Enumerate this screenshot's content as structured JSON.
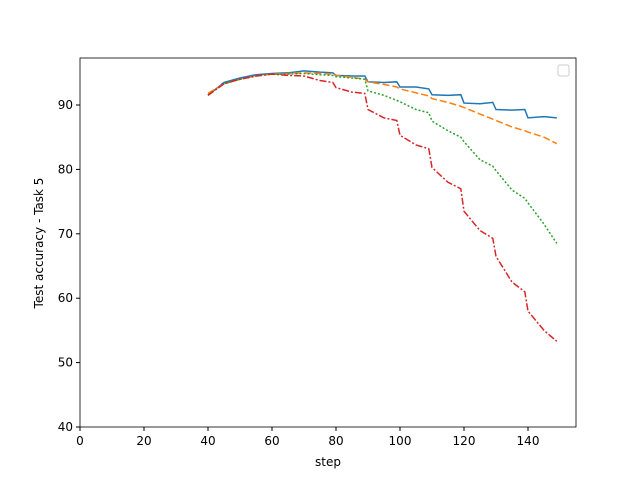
{
  "chart_data": {
    "type": "line",
    "xlabel": "step",
    "ylabel": "Test accuracy - Task 5",
    "x": [
      40,
      45,
      50,
      55,
      60,
      65,
      70,
      75,
      79,
      80,
      85,
      89,
      90,
      95,
      99,
      100,
      105,
      109,
      110,
      115,
      119,
      120,
      125,
      129,
      130,
      135,
      139,
      140,
      145,
      149
    ],
    "series": [
      {
        "color": "#1f77b4",
        "linestyle": "solid",
        "values": [
          91.5,
          93.5,
          94.2,
          94.7,
          94.9,
          95.0,
          95.3,
          95.1,
          95.0,
          94.6,
          94.5,
          94.5,
          93.6,
          93.5,
          93.6,
          92.8,
          92.8,
          92.5,
          91.6,
          91.5,
          91.6,
          90.3,
          90.2,
          90.4,
          89.3,
          89.2,
          89.3,
          88.0,
          88.2,
          88.0
        ]
      },
      {
        "color": "#ff7f0e",
        "linestyle": "dashed",
        "values": [
          91.8,
          93.3,
          94.0,
          94.5,
          94.8,
          94.9,
          95.0,
          94.9,
          94.8,
          94.6,
          94.3,
          94.0,
          93.6,
          93.2,
          92.8,
          92.5,
          91.9,
          91.4,
          91.0,
          90.4,
          89.8,
          89.6,
          88.6,
          87.8,
          87.6,
          86.6,
          86.0,
          85.8,
          85.0,
          84.0
        ]
      },
      {
        "color": "#2ca02c",
        "linestyle": "dotted",
        "values": [
          91.6,
          93.3,
          94.0,
          94.5,
          94.8,
          94.8,
          94.9,
          94.7,
          94.6,
          94.4,
          94.2,
          94.0,
          92.2,
          91.5,
          90.7,
          90.5,
          89.3,
          88.8,
          87.5,
          86.0,
          85.0,
          84.3,
          81.5,
          80.5,
          79.8,
          76.8,
          75.5,
          74.8,
          71.5,
          68.5
        ]
      },
      {
        "color": "#d62728",
        "linestyle": "dashdot",
        "values": [
          91.5,
          93.3,
          94.0,
          94.5,
          94.8,
          94.6,
          94.5,
          93.8,
          93.5,
          92.7,
          92.0,
          91.8,
          89.3,
          88.0,
          87.6,
          85.3,
          83.8,
          83.2,
          80.3,
          78.0,
          77.0,
          73.5,
          70.5,
          69.3,
          66.5,
          62.5,
          61.0,
          58.0,
          55.0,
          53.3
        ]
      }
    ],
    "xlim": [
      0,
      155
    ],
    "ylim": [
      40,
      97.3
    ],
    "xticks": [
      0,
      20,
      40,
      60,
      80,
      100,
      120,
      140
    ],
    "yticks": [
      40,
      50,
      60,
      70,
      80,
      90
    ],
    "legend": "upper right"
  }
}
